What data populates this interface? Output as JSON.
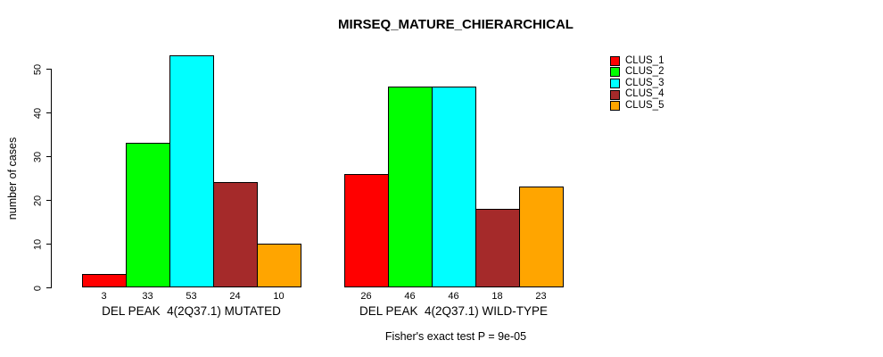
{
  "chart_data": {
    "type": "bar",
    "title": "MIRSEQ_MATURE_CHIERARCHICAL",
    "xlabel": "",
    "ylabel": "number of cases",
    "ylim": [
      0,
      53
    ],
    "yticks": [
      0,
      10,
      20,
      30,
      40,
      50
    ],
    "grid": false,
    "legend_position": "topright",
    "categories": [
      "DEL PEAK  4(2Q37.1) MUTATED",
      "DEL PEAK  4(2Q37.1) WILD-TYPE"
    ],
    "series": [
      {
        "name": "CLUS_1",
        "color": "#FF0000",
        "values": [
          3,
          26
        ]
      },
      {
        "name": "CLUS_2",
        "color": "#00FF00",
        "values": [
          33,
          46
        ]
      },
      {
        "name": "CLUS_3",
        "color": "#00FFFF",
        "values": [
          53,
          46
        ]
      },
      {
        "name": "CLUS_4",
        "color": "#A52A2A",
        "values": [
          24,
          18
        ]
      },
      {
        "name": "CLUS_5",
        "color": "#FFA500",
        "values": [
          10,
          23
        ]
      }
    ],
    "bar_value_labels": {
      "group1": [
        3,
        33,
        53,
        24,
        10
      ],
      "group2": [
        26,
        46,
        46,
        18,
        23
      ]
    },
    "annotation": "Fisher's exact test P = 9e-05"
  }
}
